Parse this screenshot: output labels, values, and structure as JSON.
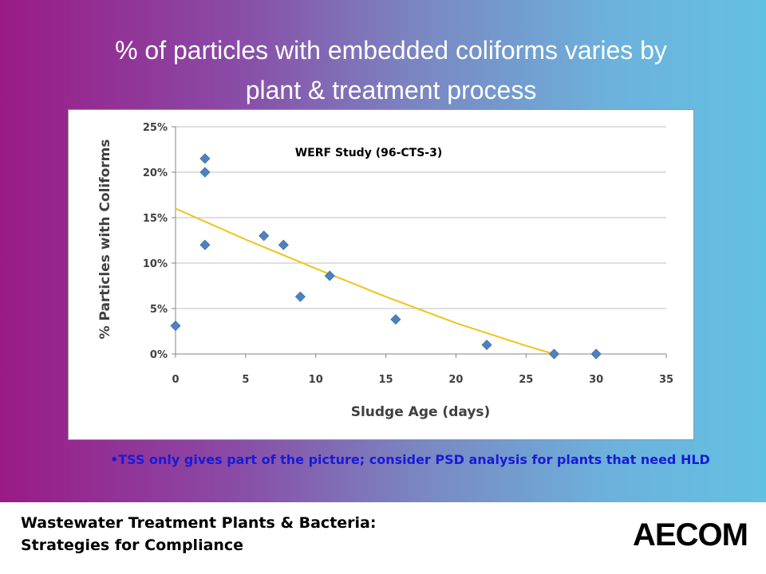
{
  "slide": {
    "title_line1": "% of particles with embedded coliforms  varies by",
    "title_line2": "plant & treatment process",
    "bullet_marker": "•",
    "bullet_text": "TSS only gives part of the picture; consider PSD analysis for plants that need HLD",
    "footer_line1": "Wastewater Treatment Plants & Bacteria:",
    "footer_line2": "Strategies for Compliance",
    "logo_text": "AECOM"
  },
  "colors": {
    "point": "#4f81bd",
    "trendline": "#f0c419",
    "gridline": "#bfbfbf",
    "axis_text": "#404040"
  },
  "chart_data": {
    "type": "scatter",
    "title": "WERF Study (96-CTS-3)",
    "xlabel": "Sludge Age (days)",
    "ylabel": "% Particles with Coliforms",
    "xlim": [
      0,
      35
    ],
    "ylim": [
      0,
      25
    ],
    "x_ticks": [
      0,
      5,
      10,
      15,
      20,
      25,
      30,
      35
    ],
    "y_ticks": [
      0,
      5,
      10,
      15,
      20,
      25
    ],
    "y_tick_labels": [
      "0%",
      "5%",
      "10%",
      "15%",
      "20%",
      "25%"
    ],
    "grid": true,
    "points": [
      {
        "x": 0,
        "y": 3.1
      },
      {
        "x": 2.1,
        "y": 21.5
      },
      {
        "x": 2.1,
        "y": 20.0
      },
      {
        "x": 2.1,
        "y": 12.0
      },
      {
        "x": 6.3,
        "y": 13.0
      },
      {
        "x": 7.7,
        "y": 12.0
      },
      {
        "x": 8.9,
        "y": 6.3
      },
      {
        "x": 11.0,
        "y": 8.6
      },
      {
        "x": 15.7,
        "y": 3.8
      },
      {
        "x": 22.2,
        "y": 1.0
      },
      {
        "x": 27.0,
        "y": 0.0
      },
      {
        "x": 30.0,
        "y": 0.0
      }
    ],
    "trendline": {
      "type": "polynomial",
      "points": [
        {
          "x": 0,
          "y": 16.0
        },
        {
          "x": 5,
          "y": 12.6
        },
        {
          "x": 10,
          "y": 9.4
        },
        {
          "x": 15,
          "y": 6.3
        },
        {
          "x": 20,
          "y": 3.4
        },
        {
          "x": 25,
          "y": 0.9
        },
        {
          "x": 27,
          "y": 0.0
        }
      ]
    }
  }
}
